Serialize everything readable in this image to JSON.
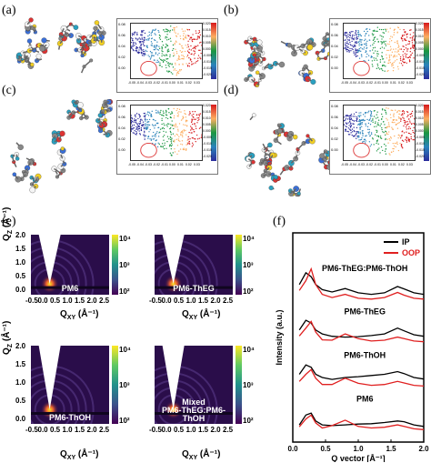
{
  "panel_labels": {
    "a": "(a)",
    "b": "(b)",
    "c": "(c)",
    "d": "(d)",
    "e": "(e)",
    "f": "(f)"
  },
  "rdg_panels": [
    {
      "id": "a",
      "yticks": [
        "0.08",
        "0.06",
        "0.04",
        "0.02",
        "0.00"
      ],
      "xticks": [
        "-0.05",
        "-0.04",
        "-0.03",
        "-0.02",
        "-0.01",
        "0.00",
        "0.01",
        "0.02",
        "0.03"
      ],
      "cbar_ticks": [
        "0.020",
        "0.015",
        "0.010",
        "0.005",
        "0.000",
        "-0.005",
        "-0.010",
        "-0.015",
        "-0.020"
      ]
    },
    {
      "id": "b",
      "yticks": [
        "0.08",
        "0.06",
        "0.04",
        "0.02",
        "0.00"
      ],
      "xticks": [
        "-0.05",
        "-0.04",
        "-0.03",
        "-0.02",
        "-0.01",
        "0.00",
        "0.01",
        "0.02",
        "0.03"
      ],
      "cbar_ticks": [
        "0.020",
        "0.015",
        "0.010",
        "0.005",
        "0.000",
        "-0.005",
        "-0.010",
        "-0.015",
        "-0.020"
      ]
    },
    {
      "id": "c",
      "yticks": [
        "0.08",
        "0.06",
        "0.04",
        "0.02",
        "0.00"
      ],
      "xticks": [
        "-0.05",
        "-0.04",
        "-0.03",
        "-0.02",
        "-0.01",
        "0.00",
        "0.01",
        "0.02",
        "0.03"
      ],
      "cbar_ticks": [
        "0.020",
        "0.015",
        "0.010",
        "0.005",
        "0.000",
        "-0.005",
        "-0.010",
        "-0.015",
        "-0.020"
      ]
    },
    {
      "id": "d",
      "yticks": [
        "0.08",
        "0.06",
        "0.04",
        "0.02",
        "0.00"
      ],
      "xticks": [
        "-0.05",
        "-0.04",
        "-0.03",
        "-0.02",
        "-0.01",
        "0.00",
        "0.01",
        "0.02",
        "0.03"
      ],
      "cbar_ticks": [
        "0.020",
        "0.015",
        "0.010",
        "0.005",
        "0.000",
        "-0.005",
        "-0.010",
        "-0.015",
        "-0.020"
      ]
    }
  ],
  "giwaxs": {
    "y_label": "Q",
    "y_label_sub": "Z",
    "y_unit": " (Å⁻¹)",
    "x_label": "Q",
    "x_label_sub": "XY",
    "x_unit": " (Å⁻¹)",
    "yticks": [
      "2.0",
      "1.5",
      "1.0",
      "0.5",
      "0.0"
    ],
    "xticks": [
      "-0.5",
      "0.0",
      "0.5",
      "1.0",
      "1.5",
      "2.0",
      "2.5"
    ],
    "cbar_ticks": [
      "10⁴",
      "10³",
      "10²"
    ],
    "panels": [
      {
        "name": "PM6"
      },
      {
        "name": "PM6-ThEG"
      },
      {
        "name": "PM6-ThOH"
      },
      {
        "name": "Mixed\nPM6-ThEG:PM6-ThOH"
      }
    ]
  },
  "chart_data": {
    "type": "line",
    "xlabel": "Q vector [Å⁻¹]",
    "ylabel": "Intensity (a.u.)",
    "xlim": [
      0.0,
      2.0
    ],
    "xticks": [
      "0.0",
      "0.5",
      "1.0",
      "1.5",
      "2.0"
    ],
    "legend": [
      {
        "name": "IP",
        "color": "#000000"
      },
      {
        "name": "OOP",
        "color": "#e02020"
      }
    ],
    "legend_position": "top-right",
    "groups": [
      {
        "label": "PM6-ThEG:PM6-ThOH",
        "offset": 3,
        "IP": {
          "x": [
            0.1,
            0.2,
            0.28,
            0.35,
            0.45,
            0.6,
            0.8,
            1.0,
            1.2,
            1.4,
            1.6,
            1.7,
            1.85,
            2.0
          ],
          "y": [
            0.55,
            0.85,
            0.75,
            0.55,
            0.42,
            0.36,
            0.45,
            0.34,
            0.3,
            0.34,
            0.5,
            0.44,
            0.34,
            0.3
          ]
        },
        "OOP": {
          "x": [
            0.1,
            0.2,
            0.28,
            0.35,
            0.45,
            0.6,
            0.8,
            1.0,
            1.2,
            1.4,
            1.6,
            1.7,
            1.85,
            2.0
          ],
          "y": [
            0.4,
            0.65,
            0.95,
            0.55,
            0.3,
            0.22,
            0.3,
            0.2,
            0.18,
            0.22,
            0.35,
            0.28,
            0.2,
            0.18
          ]
        }
      },
      {
        "label": "PM6-ThEG",
        "offset": 2,
        "IP": {
          "x": [
            0.1,
            0.2,
            0.28,
            0.35,
            0.45,
            0.6,
            0.8,
            1.0,
            1.2,
            1.4,
            1.6,
            1.7,
            1.85,
            2.0
          ],
          "y": [
            0.5,
            0.75,
            0.68,
            0.5,
            0.4,
            0.34,
            0.32,
            0.33,
            0.36,
            0.4,
            0.55,
            0.48,
            0.38,
            0.34
          ]
        },
        "OOP": {
          "x": [
            0.1,
            0.2,
            0.28,
            0.35,
            0.45,
            0.6,
            0.8,
            1.0,
            1.2,
            1.4,
            1.6,
            1.7,
            1.85,
            2.0
          ],
          "y": [
            0.35,
            0.55,
            0.72,
            0.45,
            0.25,
            0.24,
            0.4,
            0.28,
            0.22,
            0.24,
            0.32,
            0.28,
            0.22,
            0.2
          ]
        }
      },
      {
        "label": "PM6-ThOH",
        "offset": 1,
        "IP": {
          "x": [
            0.1,
            0.2,
            0.28,
            0.35,
            0.45,
            0.6,
            0.8,
            1.0,
            1.2,
            1.4,
            1.6,
            1.7,
            1.85,
            2.0
          ],
          "y": [
            0.48,
            0.72,
            0.66,
            0.48,
            0.4,
            0.35,
            0.4,
            0.42,
            0.45,
            0.48,
            0.55,
            0.5,
            0.4,
            0.36
          ]
        },
        "OOP": {
          "x": [
            0.1,
            0.2,
            0.28,
            0.35,
            0.45,
            0.6,
            0.8,
            1.0,
            1.2,
            1.4,
            1.6,
            1.7,
            1.85,
            2.0
          ],
          "y": [
            0.3,
            0.48,
            0.6,
            0.38,
            0.22,
            0.22,
            0.38,
            0.25,
            0.2,
            0.22,
            0.3,
            0.26,
            0.2,
            0.18
          ]
        }
      },
      {
        "label": "PM6",
        "offset": 0,
        "IP": {
          "x": [
            0.1,
            0.2,
            0.28,
            0.35,
            0.45,
            0.6,
            0.8,
            1.0,
            1.2,
            1.4,
            1.6,
            1.7,
            1.85,
            2.0
          ],
          "y": [
            0.3,
            0.55,
            0.6,
            0.4,
            0.3,
            0.28,
            0.3,
            0.32,
            0.33,
            0.36,
            0.4,
            0.38,
            0.3,
            0.26
          ]
        },
        "OOP": {
          "x": [
            0.1,
            0.2,
            0.28,
            0.35,
            0.45,
            0.6,
            0.8,
            1.0,
            1.2,
            1.4,
            1.6,
            1.7,
            1.85,
            2.0
          ],
          "y": [
            0.25,
            0.45,
            0.55,
            0.35,
            0.22,
            0.28,
            0.42,
            0.26,
            0.22,
            0.24,
            0.3,
            0.26,
            0.2,
            0.18
          ]
        }
      }
    ]
  }
}
